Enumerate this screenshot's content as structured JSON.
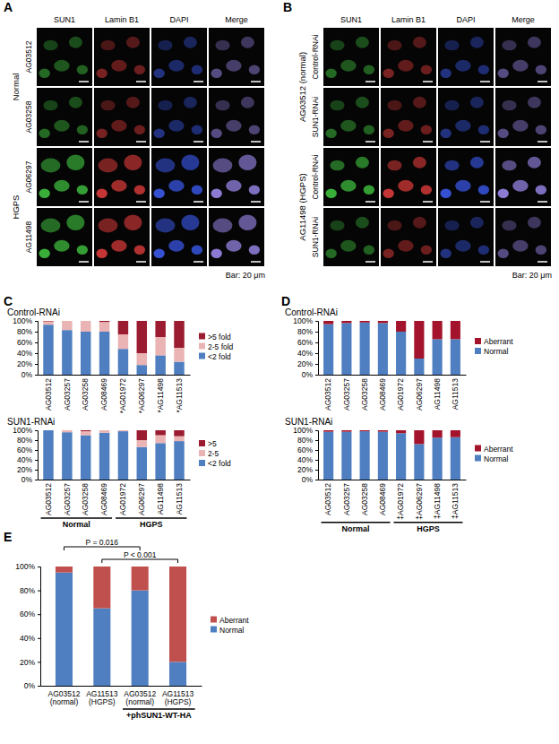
{
  "figure": {
    "letters": [
      "A",
      "B",
      "C",
      "D",
      "E"
    ],
    "image_panels": [
      {
        "columns": [
          "SUN1",
          "Lamin B1",
          "DAPI",
          "Merge"
        ],
        "groups": [
          {
            "label": "Normal",
            "rows": [
              "AG03512",
              "AG03258"
            ]
          },
          {
            "label": "HGPS",
            "rows": [
              "AG06297",
              "AG11498"
            ]
          }
        ],
        "scale_bar": "Bar: 20 μm"
      },
      {
        "columns": [
          "SUN1",
          "Lamin B1",
          "DAPI",
          "Merge"
        ],
        "groups": [
          {
            "label": "AG03512 (normal)",
            "rows": [
              "Control-RNAi",
              "SUN1-RNAi"
            ]
          },
          {
            "label": "AG11498 (HGPS)",
            "rows": [
              "Control-RNAi",
              "SUN1-RNAi"
            ]
          }
        ],
        "scale_bar": "Bar: 20 μm"
      }
    ]
  },
  "chart_data": [
    {
      "type": "bar",
      "stacked": true,
      "title": "Control-RNAi",
      "grid": false,
      "legend": "right",
      "categories": [
        "AG03512",
        "AG03257",
        "AG03258",
        "AG08469",
        "*AG01972",
        "*AG06297",
        "*AG11498",
        "*AG11513"
      ],
      "series": [
        {
          "name": "<2 fold",
          "color": "#4f7fc0",
          "values": [
            93,
            83,
            80,
            80,
            48,
            18,
            36,
            24
          ]
        },
        {
          "name": "2-5 fold",
          "color": "#eab4b4",
          "values": [
            6,
            17,
            20,
            18,
            27,
            22,
            34,
            26
          ]
        },
        {
          "name": ">5 fold",
          "color": "#9b1b30",
          "values": [
            1,
            0,
            0,
            2,
            25,
            60,
            30,
            50
          ]
        }
      ],
      "ylim": [
        0,
        100
      ],
      "yticks": [
        {
          "value": 0,
          "label": "0%"
        },
        {
          "value": 20,
          "label": "20%"
        },
        {
          "value": 40,
          "label": "40%"
        },
        {
          "value": 60,
          "label": "60%"
        },
        {
          "value": 80,
          "label": "80%"
        },
        {
          "value": 100,
          "label": "100%"
        }
      ]
    },
    {
      "type": "bar",
      "stacked": true,
      "title": "SUN1-RNAi",
      "grid": false,
      "legend": "right",
      "categories": [
        "AG03512",
        "AG03257",
        "AG03258",
        "AG08469",
        "AG01972",
        "AG06297",
        "AG11498",
        "AG11513"
      ],
      "series": [
        {
          "name": "<2 fold",
          "color": "#4f7fc0",
          "values": [
            100,
            96,
            90,
            95,
            98,
            66,
            74,
            78
          ]
        },
        {
          "name": "2-5",
          "color": "#eab4b4",
          "values": [
            0,
            4,
            8,
            5,
            2,
            14,
            16,
            10
          ]
        },
        {
          "name": ">5",
          "color": "#9b1b30",
          "values": [
            0,
            0,
            2,
            0,
            0,
            20,
            10,
            12
          ]
        }
      ],
      "ylim": [
        0,
        100
      ],
      "yticks": [
        {
          "value": 0,
          "label": "0%"
        },
        {
          "value": 20,
          "label": "20%"
        },
        {
          "value": 40,
          "label": "40%"
        },
        {
          "value": 60,
          "label": "60%"
        },
        {
          "value": 80,
          "label": "80%"
        },
        {
          "value": 100,
          "label": "100%"
        }
      ],
      "category_groups": [
        {
          "label": "Normal",
          "from": 0,
          "to": 3
        },
        {
          "label": "HGPS",
          "from": 4,
          "to": 7
        }
      ]
    },
    {
      "type": "bar",
      "stacked": true,
      "title": "Control-RNAi",
      "grid": false,
      "legend": "right",
      "categories": [
        "AG03512",
        "AG03257",
        "AG03258",
        "AG08469",
        "AG01972",
        "AG06297",
        "AG11498",
        "AG11513"
      ],
      "series": [
        {
          "name": "Normal",
          "color": "#4f7fc0",
          "values": [
            94,
            96,
            97,
            96,
            80,
            30,
            66,
            66
          ]
        },
        {
          "name": "Aberrant",
          "color": "#a3142c",
          "values": [
            6,
            4,
            3,
            4,
            20,
            70,
            34,
            34
          ]
        }
      ],
      "ylim": [
        0,
        100
      ],
      "yticks": [
        {
          "value": 0,
          "label": "0%"
        },
        {
          "value": 20,
          "label": "20%"
        },
        {
          "value": 40,
          "label": "40%"
        },
        {
          "value": 60,
          "label": "60%"
        },
        {
          "value": 80,
          "label": "80%"
        },
        {
          "value": 100,
          "label": "100%"
        }
      ]
    },
    {
      "type": "bar",
      "stacked": true,
      "title": "SUN1-RNAi",
      "grid": false,
      "legend": "right",
      "categories": [
        "AG03512",
        "AG03257",
        "AG03258",
        "AG08469",
        "‡AG01972",
        "‡AG06297",
        "‡AG11498",
        "‡AG11513"
      ],
      "series": [
        {
          "name": "Normal",
          "color": "#4f7fc0",
          "values": [
            97,
            97,
            98,
            97,
            94,
            72,
            85,
            86
          ]
        },
        {
          "name": "Aberrant",
          "color": "#a3142c",
          "values": [
            3,
            3,
            2,
            3,
            6,
            28,
            15,
            14
          ]
        }
      ],
      "ylim": [
        0,
        100
      ],
      "yticks": [
        {
          "value": 0,
          "label": "0%"
        },
        {
          "value": 20,
          "label": "20%"
        },
        {
          "value": 40,
          "label": "40%"
        },
        {
          "value": 60,
          "label": "60%"
        },
        {
          "value": 80,
          "label": "80%"
        },
        {
          "value": 100,
          "label": "100%"
        }
      ],
      "category_groups": [
        {
          "label": "Normal",
          "from": 0,
          "to": 3
        },
        {
          "label": "HGPS",
          "from": 4,
          "to": 7
        }
      ]
    },
    {
      "type": "bar",
      "stacked": true,
      "grid": false,
      "legend": "right",
      "categories": [
        "AG03512 (normal)",
        "AG11513 (HGPS)",
        "AG03512 (normal)",
        "AG11513 (HGPS)"
      ],
      "series": [
        {
          "name": "Normal",
          "color": "#4f7fc0",
          "values": [
            95,
            65,
            80,
            20
          ]
        },
        {
          "name": "Aberrant",
          "color": "#c0504d",
          "values": [
            5,
            35,
            20,
            80
          ]
        }
      ],
      "ylim": [
        0,
        100
      ],
      "yticks": [
        {
          "value": 0,
          "label": "0%"
        },
        {
          "value": 20,
          "label": "20%"
        },
        {
          "value": 40,
          "label": "40%"
        },
        {
          "value": 60,
          "label": "60%"
        },
        {
          "value": 80,
          "label": "80%"
        },
        {
          "value": 100,
          "label": "100%"
        }
      ],
      "category_groups": [
        {
          "label": "+phSUN1-WT-HA",
          "from": 2,
          "to": 3
        }
      ],
      "annotations": [
        {
          "text": "P = 0.016",
          "between": [
            0,
            2
          ]
        },
        {
          "text": "P < 0.001",
          "between": [
            1,
            3
          ]
        }
      ]
    }
  ]
}
